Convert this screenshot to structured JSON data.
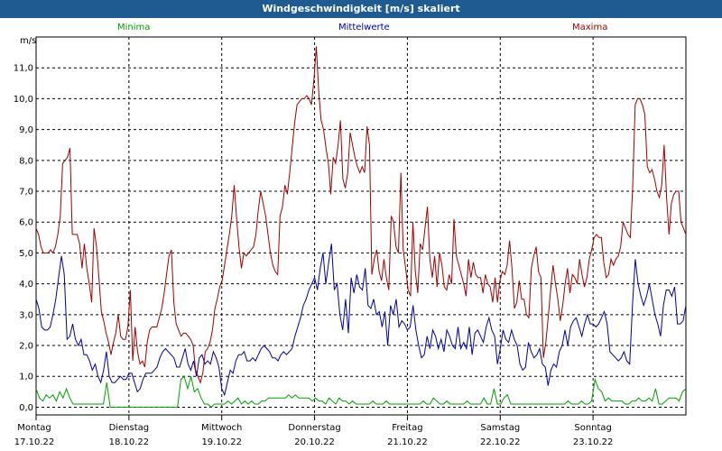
{
  "title": "Windgeschwindigkeit [m/s] skaliert",
  "colors": {
    "min": "#00a000",
    "mean": "#0000a0",
    "max": "#a00000",
    "titlebar": "#1f5a91"
  },
  "chart_data": {
    "type": "line",
    "title": "Windgeschwindigkeit [m/s] skaliert",
    "ylabel": "m/s",
    "xlabel": "",
    "ylim": [
      -0.25,
      12.0
    ],
    "yticks": [
      "0,0",
      "1,0",
      "2,0",
      "3,0",
      "4,0",
      "5,0",
      "6,0",
      "7,0",
      "8,0",
      "9,0",
      "10,0",
      "11,0"
    ],
    "ytick_values": [
      0,
      1,
      2,
      3,
      4,
      5,
      6,
      7,
      8,
      9,
      10,
      11
    ],
    "xlim": [
      0,
      7
    ],
    "xticks": [
      {
        "day": "Montag",
        "date": "17.10.22"
      },
      {
        "day": "Dienstag",
        "date": "18.10.22"
      },
      {
        "day": "Mittwoch",
        "date": "19.10.22"
      },
      {
        "day": "Donnerstag",
        "date": "20.10.22"
      },
      {
        "day": "Freitag",
        "date": "21.10.22"
      },
      {
        "day": "Samstag",
        "date": "22.10.22"
      },
      {
        "day": "Sonntag",
        "date": "23.10.22"
      }
    ],
    "grid": true,
    "legend_position": "top",
    "series": [
      {
        "name": "Minima",
        "values": [
          0.6,
          0.3,
          0.2,
          0.4,
          0.3,
          0.4,
          0.2,
          0.5,
          0.3,
          0.6,
          0.3,
          0.1,
          0.1,
          0.1,
          0.1,
          0.1,
          0.1,
          0.1,
          0.1,
          0.1,
          0.1,
          0.8,
          0.0,
          0.0,
          0.0,
          0.0,
          0.0,
          0.0,
          0.0,
          0.0,
          0.0,
          0.0,
          0.0,
          0.0,
          0.0,
          0.0,
          0.0,
          0.0,
          0.0,
          0.0,
          0.0,
          0.0,
          0.0,
          0.9,
          1.0,
          0.6,
          1.0,
          0.5,
          0.6,
          0.3,
          0.1,
          0.1,
          0.0,
          0.1,
          0.1,
          0.1,
          0.1,
          0.2,
          0.1,
          0.2,
          0.3,
          0.1,
          0.2,
          0.1,
          0.2,
          0.1,
          0.1,
          0.2,
          0.2,
          0.3,
          0.3,
          0.3,
          0.3,
          0.3,
          0.3,
          0.4,
          0.3,
          0.4,
          0.3,
          0.3,
          0.3,
          0.3,
          0.2,
          0.3,
          0.2,
          0.2,
          0.1,
          0.3,
          0.2,
          0.1,
          0.3,
          0.2,
          0.2,
          0.1,
          0.2,
          0.1,
          0.1,
          0.1,
          0.1,
          0.1,
          0.2,
          0.1,
          0.1,
          0.1,
          0.2,
          0.1,
          0.1,
          0.1,
          0.1,
          0.1,
          0.1,
          0.1,
          0.1,
          0.1,
          0.1,
          0.2,
          0.1,
          0.1,
          0.3,
          0.2,
          0.1,
          0.1,
          0.2,
          0.1,
          0.1,
          0.1,
          0.1,
          0.1,
          0.2,
          0.1,
          0.1,
          0.1,
          0.1,
          0.3,
          0.1,
          0.1,
          0.6,
          0.1,
          0.1,
          0.3,
          0.4,
          0.1,
          0.1,
          0.1,
          0.1,
          0.1,
          0.1,
          0.1,
          0.1,
          0.1,
          0.1,
          0.1,
          0.1,
          0.1,
          0.1,
          0.1,
          0.1,
          0.1,
          0.2,
          0.1,
          0.1,
          0.1,
          0.2,
          0.1,
          0.1,
          0.2,
          0.9,
          0.6,
          0.5,
          0.2,
          0.3,
          0.2,
          0.2,
          0.2,
          0.2,
          0.1,
          0.1,
          0.2,
          0.2,
          0.3,
          0.2,
          0.2,
          0.3,
          0.2,
          0.6,
          0.1,
          0.1,
          0.2,
          0.3,
          0.3,
          0.3,
          0.2,
          0.5,
          0.6
        ]
      },
      {
        "name": "Mittelwerte",
        "values": [
          3.5,
          3.2,
          2.6,
          2.5,
          2.5,
          2.6,
          3.0,
          3.5,
          4.2,
          4.9,
          4.3,
          2.2,
          2.3,
          2.7,
          2.2,
          2.0,
          2.2,
          1.7,
          1.7,
          1.5,
          1.2,
          1.4,
          1.0,
          0.8,
          1.2,
          1.8,
          1.0,
          0.8,
          0.8,
          0.9,
          1.0,
          0.9,
          0.9,
          1.1,
          1.1,
          0.8,
          0.5,
          0.6,
          0.9,
          1.1,
          1.1,
          1.1,
          1.2,
          1.3,
          1.6,
          1.8,
          1.9,
          1.8,
          1.7,
          1.6,
          1.3,
          1.3,
          1.6,
          1.9,
          1.4,
          1.2,
          1.5,
          1.0,
          1.6,
          1.7,
          1.4,
          1.5,
          1.4,
          1.8,
          1.6,
          1.3,
          0.6,
          0.4,
          0.8,
          1.2,
          1.1,
          1.5,
          1.7,
          1.7,
          1.8,
          1.5,
          1.5,
          1.6,
          1.5,
          1.7,
          1.9,
          2.0,
          1.9,
          1.8,
          1.6,
          1.6,
          1.5,
          1.7,
          1.8,
          1.7,
          1.8,
          1.9,
          2.3,
          2.6,
          2.9,
          3.3,
          3.5,
          3.8,
          4.0,
          4.2,
          3.8,
          4.5,
          5.0,
          4.0,
          4.7,
          5.3,
          3.8,
          4.0,
          3.0,
          2.5,
          3.5,
          2.4,
          4.2,
          3.7,
          4.3,
          3.9,
          3.8,
          4.5,
          3.3,
          3.2,
          3.5,
          3.0,
          3.1,
          2.6,
          3.1,
          2.0,
          3.3,
          3.0,
          3.5,
          2.6,
          2.8,
          2.7,
          2.5,
          2.6,
          3.3,
          2.5,
          2.0,
          1.6,
          1.7,
          2.3,
          1.9,
          2.5,
          2.3,
          1.9,
          2.2,
          1.8,
          2.5,
          2.3,
          2.0,
          1.9,
          2.6,
          1.9,
          2.1,
          1.9,
          2.6,
          1.7,
          2.4,
          2.5,
          2.3,
          2.1,
          2.6,
          2.9,
          2.5,
          2.3,
          1.4,
          1.9,
          2.5,
          2.2,
          2.1,
          2.5,
          2.2,
          2.0,
          1.4,
          1.2,
          1.3,
          2.1,
          1.8,
          1.6,
          1.7,
          1.9,
          1.4,
          1.3,
          0.7,
          1.2,
          1.4,
          1.3,
          1.8,
          2.0,
          2.5,
          2.0,
          2.6,
          2.8,
          2.9,
          2.6,
          2.3,
          2.7,
          3.0,
          2.7,
          2.7,
          2.6,
          2.7,
          2.9,
          3.1,
          2.7,
          1.8,
          1.7,
          1.6,
          1.5,
          1.6,
          1.8,
          1.5,
          1.4,
          3.3,
          4.8,
          4.0,
          3.6,
          3.3,
          3.6,
          4.0,
          3.5,
          3.0,
          2.7,
          2.3,
          3.3,
          3.8,
          3.8,
          3.6,
          3.9,
          2.7,
          2.7,
          2.8,
          3.3
        ]
      },
      {
        "name": "Maxima",
        "values": [
          5.8,
          5.6,
          5.2,
          5.0,
          5.0,
          5.0,
          5.1,
          5.0,
          5.2,
          5.6,
          6.2,
          7.9,
          8.0,
          8.1,
          8.4,
          5.6,
          5.6,
          5.6,
          5.3,
          4.5,
          5.3,
          4.5,
          4.0,
          3.4,
          5.8,
          5.2,
          4.2,
          3.1,
          2.8,
          2.4,
          2.1,
          1.7,
          2.1,
          2.4,
          3.0,
          2.3,
          2.2,
          2.2,
          2.6,
          3.8,
          1.5,
          2.6,
          1.8,
          1.4,
          1.5,
          1.3,
          2.1,
          2.5,
          2.6,
          2.6,
          2.6,
          2.9,
          3.2,
          3.7,
          4.3,
          4.9,
          5.1,
          3.4,
          2.7,
          2.5,
          2.3,
          2.4,
          2.4,
          2.3,
          2.2,
          2.0,
          1.2,
          1.0,
          0.8,
          1.1,
          1.8,
          1.9,
          2.1,
          2.5,
          3.2,
          3.5,
          3.9,
          4.1,
          4.6,
          5.1,
          5.6,
          6.2,
          7.2,
          6.1,
          5.2,
          4.5,
          5.0,
          4.9,
          5.0,
          5.1,
          5.2,
          5.6,
          6.4,
          7.0,
          6.6,
          6.2,
          5.6,
          5.0,
          4.6,
          4.4,
          4.3,
          6.2,
          6.5,
          7.2,
          6.9,
          7.6,
          8.4,
          9.2,
          9.8,
          9.9,
          10.0,
          10.0,
          10.1,
          10.0,
          9.8,
          10.6,
          11.7,
          10.2,
          9.3,
          9.0,
          8.4,
          7.9,
          6.9,
          8.1,
          7.9,
          8.5,
          9.3,
          7.4,
          7.1,
          7.6,
          8.9,
          8.5,
          8.1,
          7.8,
          7.6,
          7.8,
          7.6,
          9.1,
          8.5,
          4.3,
          4.8,
          5.1,
          4.4,
          4.1,
          4.8,
          4.2,
          3.8,
          6.2,
          6.0,
          5.2,
          5.0,
          7.6,
          5.1,
          4.5,
          3.8,
          3.6,
          6.0,
          4.4,
          3.7,
          5.3,
          5.1,
          5.8,
          6.5,
          4.8,
          4.2,
          4.9,
          3.9,
          5.0,
          4.6,
          3.9,
          3.8,
          4.3,
          4.0,
          6.1,
          4.9,
          4.6,
          4.3,
          4.0,
          3.6,
          4.8,
          4.2,
          4.7,
          4.3,
          4.2,
          4.2,
          3.7,
          4.3,
          4.0,
          3.9,
          3.4,
          4.2,
          3.4,
          4.1,
          4.4,
          4.3,
          4.6,
          5.4,
          4.5,
          3.2,
          3.4,
          4.1,
          3.5,
          3.5,
          3.0,
          2.9,
          4.5,
          4.9,
          5.2,
          4.4,
          4.2,
          1.6,
          2.1,
          2.9,
          3.8,
          4.6,
          4.0,
          3.5,
          2.8,
          3.3,
          4.0,
          4.5,
          3.7,
          4.3,
          4.2,
          4.0,
          4.8,
          4.3,
          3.9,
          4.2,
          4.8,
          5.1,
          5.5,
          5.6,
          5.5,
          5.5,
          4.7,
          4.2,
          4.3,
          4.8,
          4.6,
          4.8,
          4.9,
          5.2,
          6.0,
          5.8,
          5.6,
          5.5,
          7.2,
          9.8,
          10.0,
          10.0,
          9.8,
          9.5,
          7.8,
          7.6,
          7.7,
          7.4,
          7.0,
          6.8,
          7.2,
          8.5,
          6.8,
          5.6,
          6.6,
          6.9,
          7.0,
          7.0,
          6.0,
          5.8,
          5.6
        ]
      }
    ]
  }
}
